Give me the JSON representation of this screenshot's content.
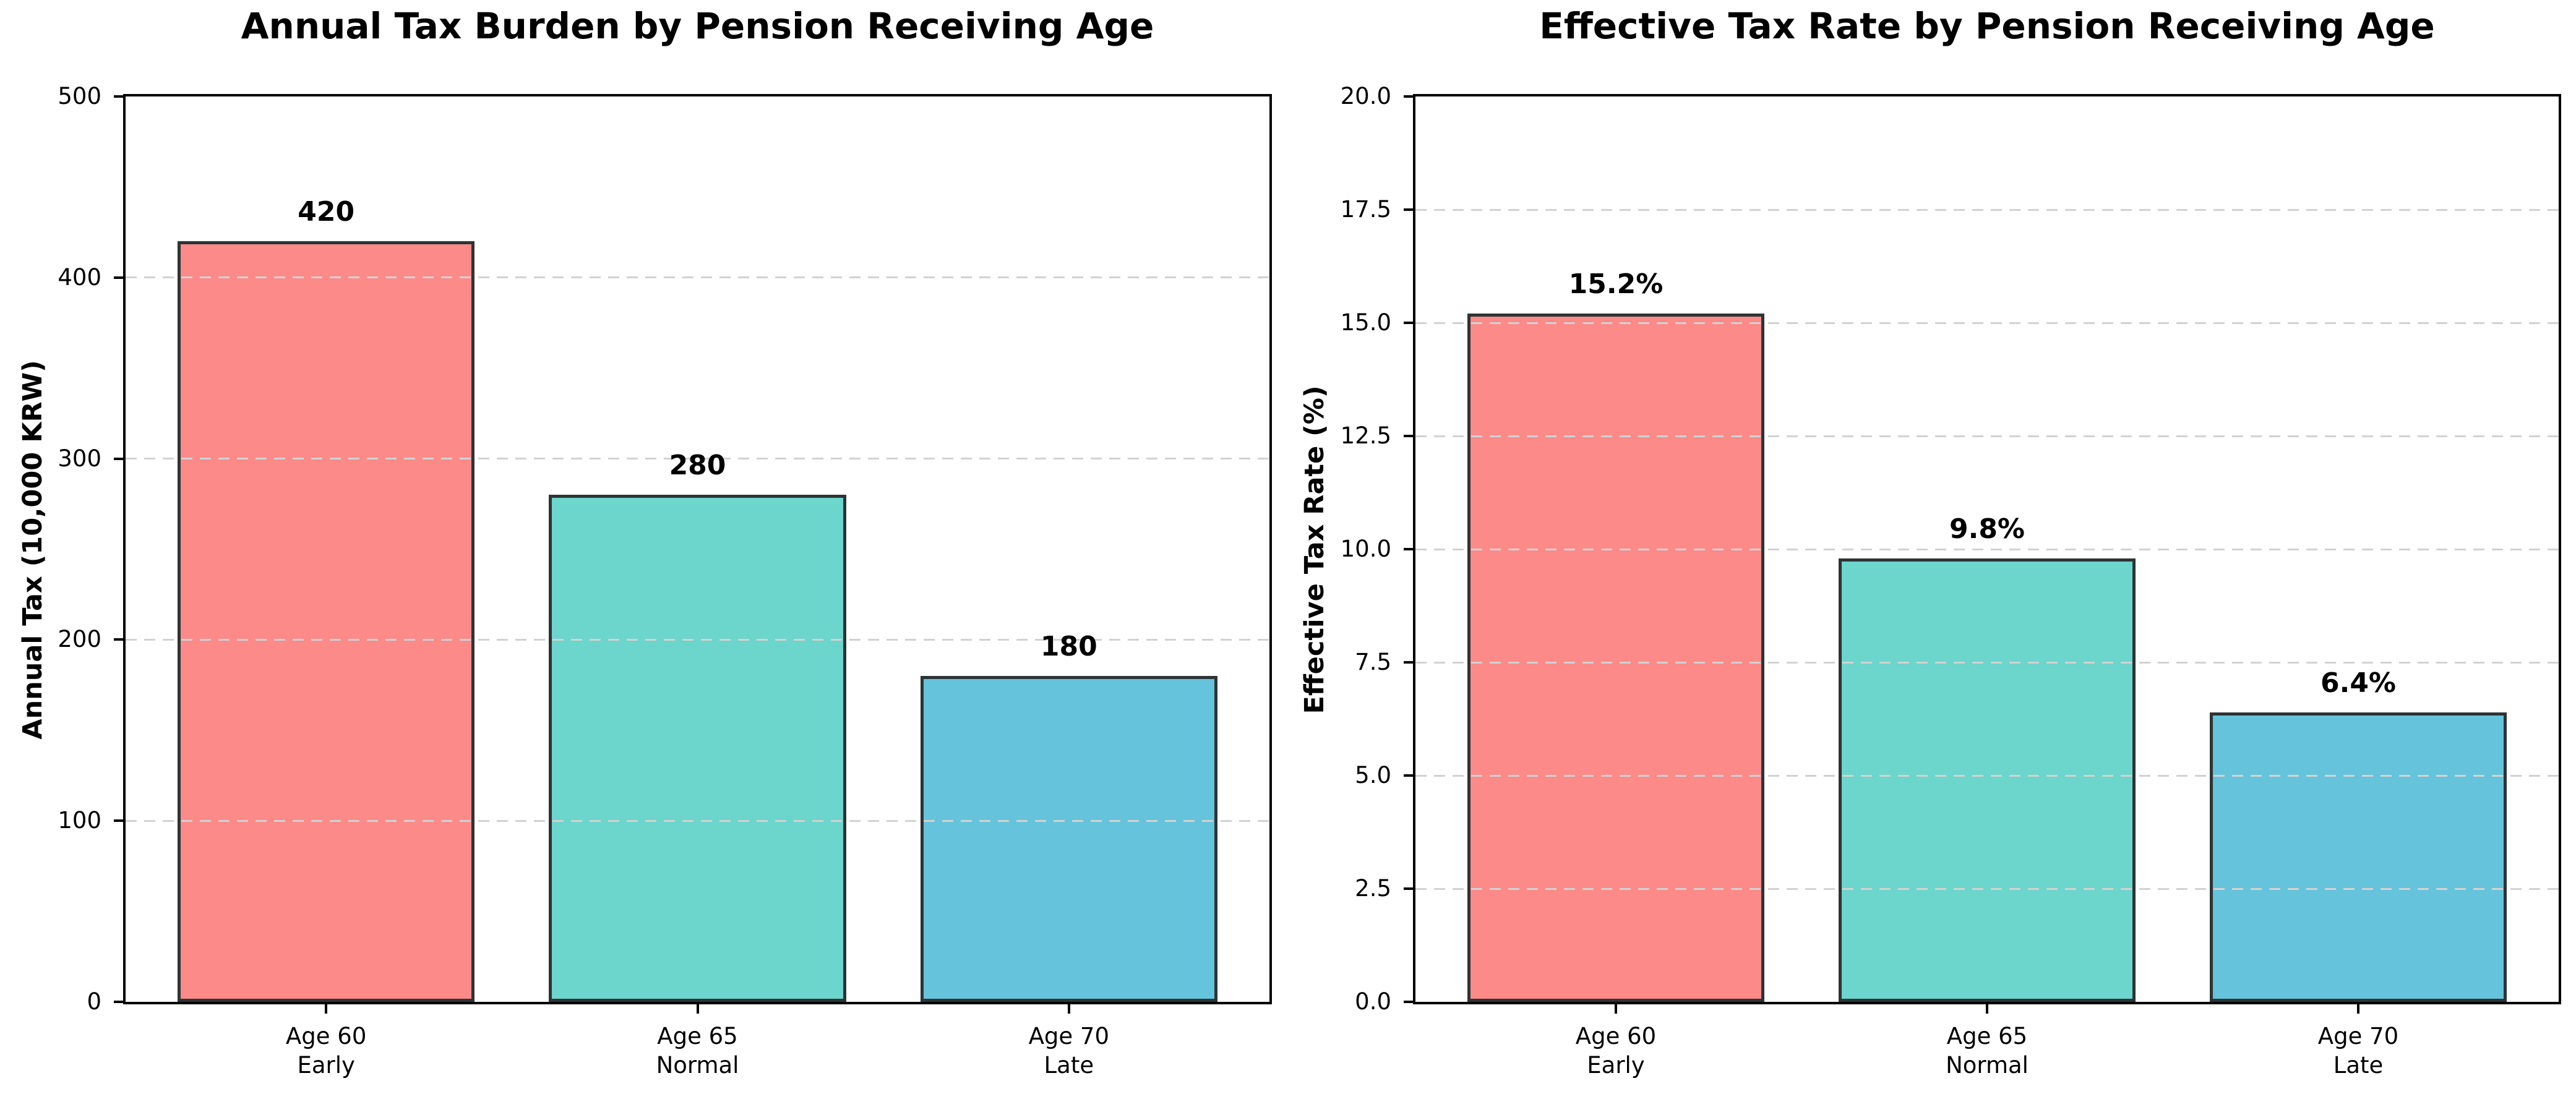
{
  "chart_data": [
    {
      "type": "bar",
      "title": "Annual Tax Burden by Pension Receiving Age",
      "ylabel": "Annual Tax (10,000 KRW)",
      "xlabel": "",
      "categories": [
        "Age 60\nEarly",
        "Age 65\nNormal",
        "Age 70\nLate"
      ],
      "values": [
        420,
        280,
        180
      ],
      "bar_labels": [
        "420",
        "280",
        "180"
      ],
      "ylim": [
        0,
        500
      ],
      "yticks": [
        0,
        100,
        200,
        300,
        400,
        500
      ],
      "ytick_labels": [
        "0",
        "100",
        "200",
        "300",
        "400",
        "500"
      ],
      "grid": "horizontal dashed",
      "legend": "none",
      "colors": [
        "#FB8A88",
        "#6CD5CC",
        "#65C3DB"
      ],
      "edge_color": "#2d3436",
      "grid_color": "#d2d2d2"
    },
    {
      "type": "bar",
      "title": "Effective Tax Rate by Pension Receiving Age",
      "ylabel": "Effective Tax Rate (%)",
      "xlabel": "",
      "categories": [
        "Age 60\nEarly",
        "Age 65\nNormal",
        "Age 70\nLate"
      ],
      "values": [
        15.2,
        9.8,
        6.4
      ],
      "bar_labels": [
        "15.2%",
        "9.8%",
        "6.4%"
      ],
      "ylim": [
        0,
        20
      ],
      "yticks": [
        0,
        2.5,
        5,
        7.5,
        10,
        12.5,
        15,
        17.5,
        20
      ],
      "ytick_labels": [
        "0.0",
        "2.5",
        "5.0",
        "7.5",
        "10.0",
        "12.5",
        "15.0",
        "17.5",
        "20.0"
      ],
      "grid": "horizontal dashed",
      "legend": "none",
      "colors": [
        "#FB8A88",
        "#6CD5CC",
        "#65C3DB"
      ],
      "edge_color": "#2d3436",
      "grid_color": "#d2d2d2"
    }
  ]
}
